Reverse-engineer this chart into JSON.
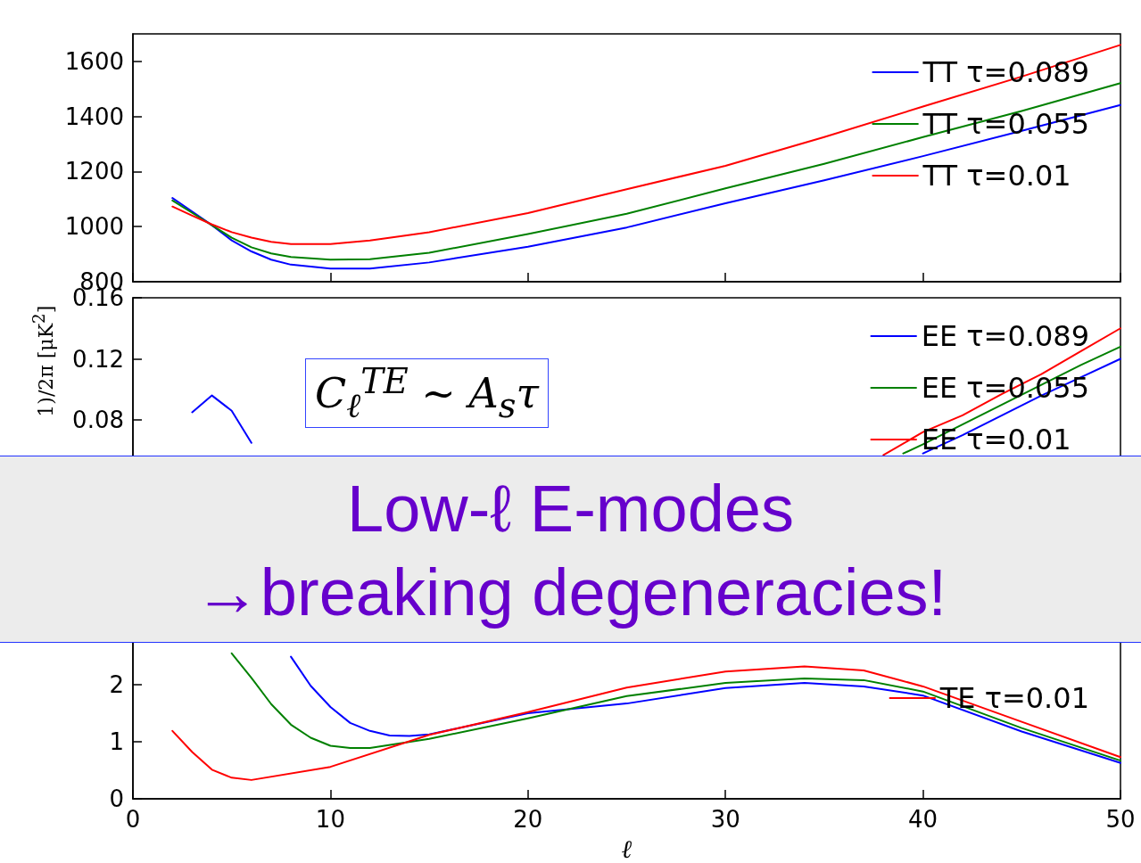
{
  "chart_data": [
    {
      "type": "line",
      "xlim": [
        0,
        50
      ],
      "xticks": [
        0,
        10,
        20,
        30,
        40,
        50
      ],
      "ylim": [
        800,
        1700
      ],
      "yticks": [
        800,
        1000,
        1200,
        1400,
        1600
      ],
      "tick_labels": "y",
      "legend": "top right",
      "x": [
        2,
        3,
        4,
        5,
        6,
        7,
        8,
        10,
        12,
        15,
        20,
        25,
        30,
        35,
        40,
        45,
        50
      ],
      "series": [
        {
          "name": "TT τ=0.089",
          "color": "#0000ff",
          "values": [
            1104,
            1055,
            1005,
            950,
            910,
            880,
            862,
            848,
            848,
            870,
            927,
            997,
            1085,
            1168,
            1256,
            1348,
            1442
          ]
        },
        {
          "name": "TT τ=0.055",
          "color": "#008000",
          "values": [
            1095,
            1050,
            1005,
            960,
            925,
            903,
            890,
            880,
            882,
            905,
            973,
            1047,
            1139,
            1228,
            1325,
            1420,
            1521
          ]
        },
        {
          "name": "TT τ=0.01",
          "color": "#ff0000",
          "values": [
            1073,
            1040,
            1008,
            980,
            960,
            945,
            937,
            937,
            950,
            980,
            1049,
            1136,
            1221,
            1325,
            1436,
            1545,
            1660
          ]
        }
      ]
    },
    {
      "type": "line",
      "xlim": [
        0,
        50
      ],
      "xticks": [
        0,
        10,
        20,
        30,
        40,
        50
      ],
      "ylim": [
        0,
        0.16
      ],
      "yticks": [
        0.08,
        0.12,
        0.16
      ],
      "tick_labels": "y",
      "legend": "top right",
      "ylabel": "1)/2π [μK$^{2}$]",
      "annotations": [
        "C$_{ℓ}$$^{TE}$ ∼ A$_{s}$τ"
      ],
      "series": [
        {
          "name": "EE τ=0.089",
          "color": "#0000ff",
          "x": [
            3,
            4,
            5,
            6,
            7,
            40,
            42,
            44,
            46,
            48,
            50
          ],
          "values": [
            0.085,
            0.096,
            0.086,
            0.065,
            null,
            0.058,
            0.07,
            0.083,
            0.096,
            0.108,
            0.12
          ]
        },
        {
          "name": "EE τ=0.055",
          "color": "#008000",
          "x": [
            39,
            40,
            42,
            44,
            46,
            48,
            50
          ],
          "values": [
            0.058,
            0.064,
            0.077,
            0.09,
            0.103,
            0.116,
            0.128
          ]
        },
        {
          "name": "EE τ=0.01",
          "color": "#ff0000",
          "x": [
            38,
            40,
            42,
            44,
            46,
            48,
            50
          ],
          "values": [
            0.057,
            0.072,
            0.083,
            0.097,
            0.11,
            0.125,
            0.14
          ]
        }
      ]
    },
    {
      "type": "line",
      "xlim": [
        0,
        50
      ],
      "xticks": [
        0,
        10,
        20,
        30,
        40,
        50
      ],
      "ylim": [
        0,
        4.5
      ],
      "yticks": [
        0,
        1,
        2
      ],
      "legend": "right",
      "xlabel": "ℓ",
      "series": [
        {
          "color": "#0000ff",
          "x": [
            8,
            9,
            10,
            11,
            12,
            13,
            14,
            15,
            20,
            25,
            30,
            34,
            37,
            40,
            45,
            50
          ],
          "values": [
            2.49,
            1.98,
            1.61,
            1.33,
            1.19,
            1.11,
            1.1,
            1.13,
            1.5,
            1.67,
            1.94,
            2.03,
            1.97,
            1.81,
            1.18,
            0.63
          ]
        },
        {
          "color": "#008000",
          "x": [
            5,
            6,
            7,
            8,
            9,
            10,
            11,
            12,
            15,
            20,
            25,
            30,
            34,
            37,
            40,
            45,
            50
          ],
          "values": [
            2.55,
            2.12,
            1.66,
            1.3,
            1.07,
            0.93,
            0.89,
            0.89,
            1.05,
            1.41,
            1.8,
            2.03,
            2.11,
            2.08,
            1.88,
            1.24,
            0.67
          ]
        },
        {
          "name": "TE τ=0.01",
          "color": "#ff0000",
          "x": [
            2,
            3,
            4,
            5,
            6,
            10,
            15,
            20,
            25,
            30,
            34,
            37,
            40,
            45,
            50
          ],
          "values": [
            1.19,
            0.82,
            0.51,
            0.37,
            0.33,
            0.56,
            1.12,
            1.52,
            1.95,
            2.23,
            2.32,
            2.25,
            1.97,
            1.35,
            0.73
          ]
        }
      ]
    },
    {
      "type": "other",
      "annotations": [
        "Low-ℓ E-modes",
        "→breaking degeneracies!"
      ]
    }
  ]
}
